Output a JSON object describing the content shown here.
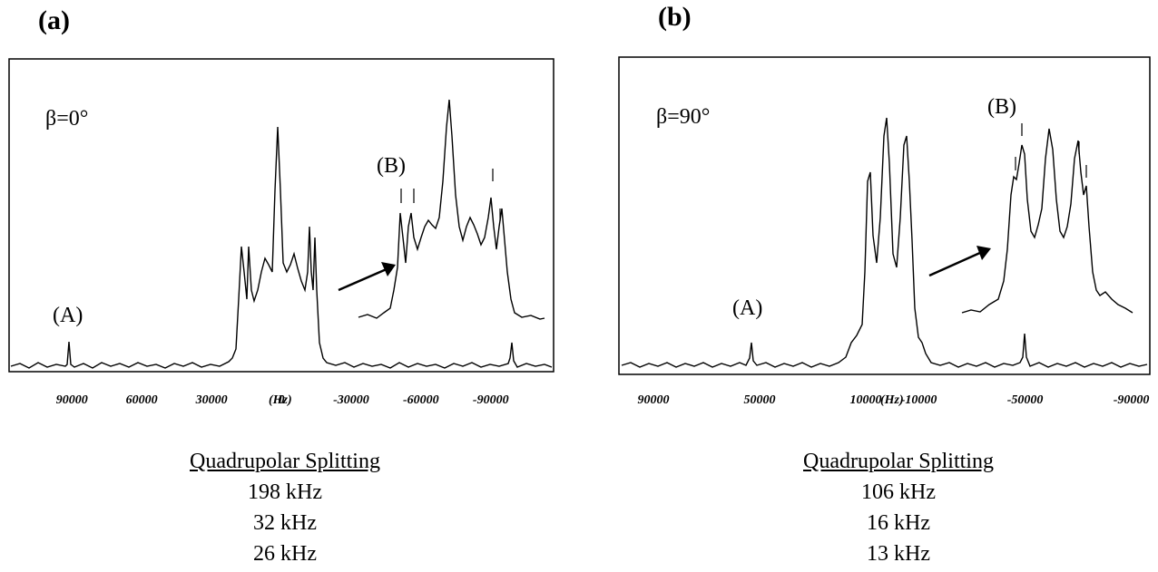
{
  "panels": [
    {
      "label": "(a)",
      "beta": "β=0°",
      "xunit": "(Hz)",
      "peak_a": "(A)",
      "peak_b": "(B)"
    },
    {
      "label": "(b)",
      "beta": "β=90°",
      "xunit": "(Hz)",
      "peak_a": "(A)",
      "peak_b": "(B)"
    }
  ],
  "caption_a": {
    "heading": "Quadrupolar Splitting",
    "lines": [
      "198 kHz",
      "32 kHz",
      "26 kHz"
    ]
  },
  "caption_b": {
    "heading": "Quadrupolar Splitting",
    "lines": [
      "106 kHz",
      "16 kHz",
      "13 kHz"
    ]
  },
  "chart_data": [
    {
      "type": "line",
      "xlabel": "(Hz)",
      "x_reversed": true,
      "xlim": [
        117000,
        -117000
      ],
      "x_ticks": [
        90000,
        60000,
        30000,
        0,
        -30000,
        -60000,
        -90000
      ],
      "x_tick_labels": [
        "90000",
        "60000",
        "30000",
        "0",
        "-30000",
        "-60000",
        "-90000"
      ],
      "annotations": [
        "β=0°",
        "(A)",
        "(B)"
      ],
      "quadrupolar_splittings_khz": [
        198,
        32,
        26
      ]
    },
    {
      "type": "line",
      "xlabel": "(Hz)",
      "x_reversed": true,
      "xlim": [
        103000,
        -97000
      ],
      "x_ticks": [
        90000,
        50000,
        10000,
        -10000,
        -50000,
        -90000
      ],
      "x_tick_labels": [
        "90000",
        "50000",
        "10000",
        "-10000",
        "-50000",
        "-90000"
      ],
      "annotations": [
        "β=90°",
        "(A)",
        "(B)"
      ],
      "quadrupolar_splittings_khz": [
        106,
        16,
        13
      ]
    }
  ]
}
